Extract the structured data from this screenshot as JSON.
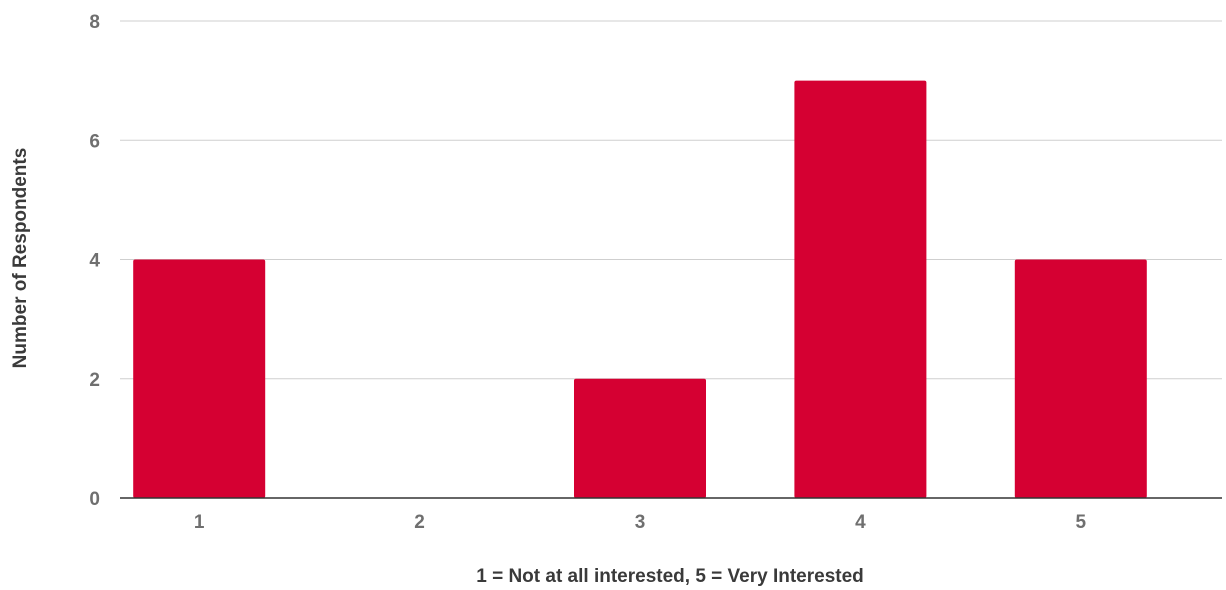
{
  "chart_data": {
    "type": "bar",
    "title": "",
    "xlabel": "1 = Not at all interested, 5 = Very Interested",
    "ylabel": "Number of Respondents",
    "categories": [
      "1",
      "2",
      "3",
      "4",
      "5"
    ],
    "values": [
      4,
      0,
      2,
      7,
      4
    ],
    "ylim": [
      0,
      8
    ],
    "yticks": [
      0,
      2,
      4,
      6,
      8
    ],
    "grid": true,
    "legend": "none",
    "colors": {
      "bar": "#d50032",
      "grid": "#cfcfcf",
      "baseline": "#333333",
      "tick_text": "#6f6f6f",
      "axis_title_text": "#3a3a3a"
    }
  }
}
